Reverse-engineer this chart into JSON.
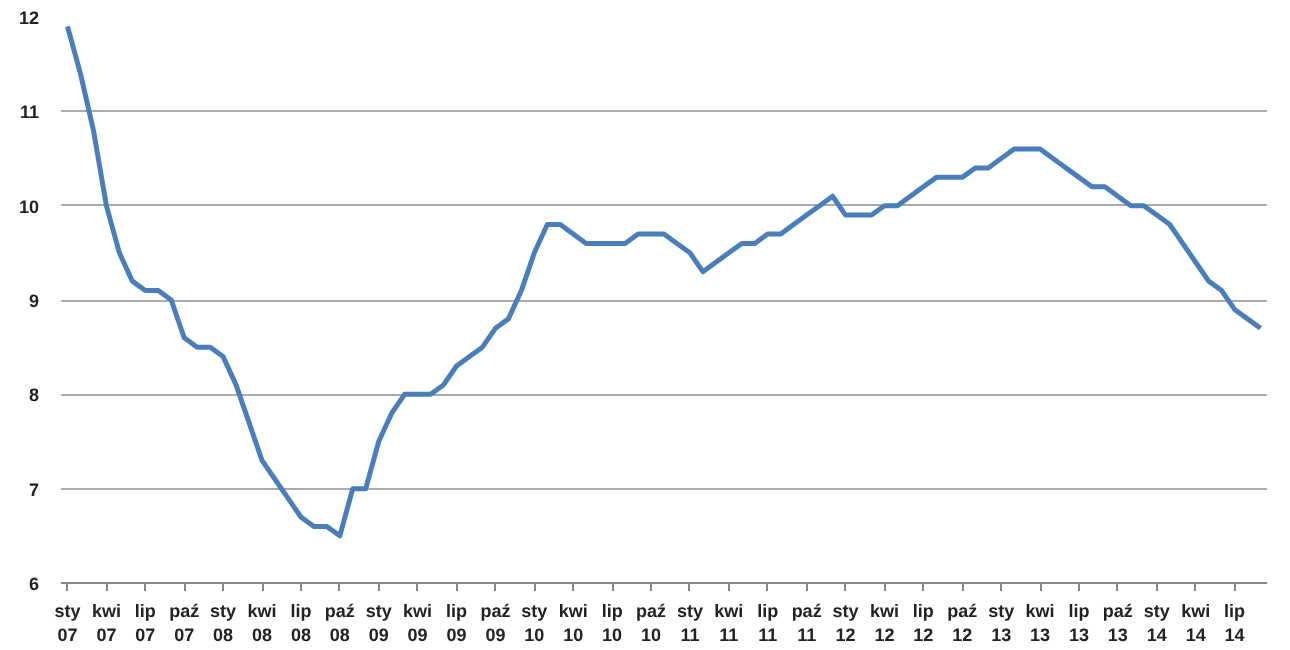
{
  "chart_data": {
    "type": "line",
    "categories": [
      "sty 07",
      null,
      null,
      "kwi 07",
      null,
      null,
      "lip 07",
      null,
      null,
      "paź 07",
      null,
      null,
      "sty 08",
      null,
      null,
      "kwi 08",
      null,
      null,
      "lip 08",
      null,
      null,
      "paź 08",
      null,
      null,
      "sty 09",
      null,
      null,
      "kwi 09",
      null,
      null,
      "lip 09",
      null,
      null,
      "paź 09",
      null,
      null,
      "sty 10",
      null,
      null,
      "kwi 10",
      null,
      null,
      "lip 10",
      null,
      null,
      "paź 10",
      null,
      null,
      "sty 11",
      null,
      null,
      "kwi 11",
      null,
      null,
      "lip 11",
      null,
      null,
      "paź 11",
      null,
      null,
      "sty 12",
      null,
      null,
      "kwi 12",
      null,
      null,
      "lip 12",
      null,
      null,
      "paź 12",
      null,
      null,
      "sty 13",
      null,
      null,
      "kwi 13",
      null,
      null,
      "lip 13",
      null,
      null,
      "paź 13",
      null,
      null,
      "sty 14",
      null,
      null,
      "kwi 14",
      null,
      null,
      "lip 14",
      null,
      null
    ],
    "series": [
      {
        "color": "#4a7ebb",
        "values": [
          11.9,
          11.4,
          10.8,
          10.0,
          9.5,
          9.2,
          9.1,
          9.1,
          9.0,
          8.6,
          8.5,
          8.5,
          8.4,
          8.1,
          7.7,
          7.3,
          7.1,
          6.9,
          6.7,
          6.6,
          6.6,
          6.5,
          7.0,
          7.0,
          7.5,
          7.8,
          8.0,
          8.0,
          8.0,
          8.1,
          8.3,
          8.4,
          8.5,
          8.7,
          8.8,
          9.1,
          9.5,
          9.8,
          9.8,
          9.7,
          9.6,
          9.6,
          9.6,
          9.6,
          9.7,
          9.7,
          9.7,
          9.6,
          9.5,
          9.3,
          9.4,
          9.5,
          9.6,
          9.6,
          9.7,
          9.7,
          9.8,
          9.9,
          10.0,
          10.1,
          9.9,
          9.9,
          9.9,
          10.0,
          10.0,
          10.1,
          10.2,
          10.3,
          10.3,
          10.3,
          10.4,
          10.4,
          10.5,
          10.6,
          10.6,
          10.6,
          10.5,
          10.4,
          10.3,
          10.2,
          10.2,
          10.1,
          10.0,
          10.0,
          9.9,
          9.8,
          9.6,
          9.4,
          9.2,
          9.1,
          8.9,
          8.8,
          8.7
        ]
      }
    ],
    "ylim": [
      6,
      12
    ],
    "yticks": [
      6,
      7,
      8,
      9,
      10,
      11,
      12
    ],
    "grid": "y",
    "line_style": "solid"
  }
}
